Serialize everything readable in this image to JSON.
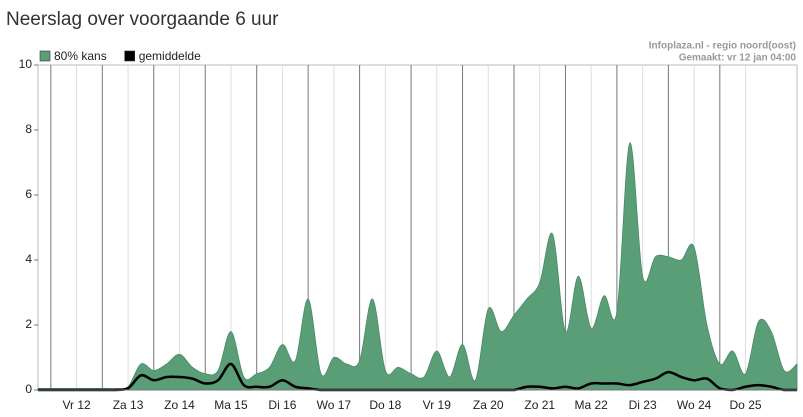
{
  "chart_data": {
    "type": "area",
    "title": "Neerslag over voorgaande 6 uur",
    "source": "Infoplaza.nl - regio noord(oost)",
    "made": "Gemaakt: vr 12 jan 04:00",
    "categories": [
      null,
      null,
      null,
      "Vr 12",
      null,
      null,
      null,
      "Za 13",
      null,
      null,
      null,
      "Zo 14",
      null,
      null,
      null,
      "Ma 15",
      null,
      null,
      null,
      "Di 16",
      null,
      null,
      null,
      "Wo 17",
      null,
      null,
      null,
      "Do 18",
      null,
      null,
      null,
      "Vr 19",
      null,
      null,
      null,
      "Za 20",
      null,
      null,
      null,
      "Zo 21",
      null,
      null,
      null,
      "Ma 22",
      null,
      null,
      null,
      "Di 23",
      null,
      null,
      null,
      "Wo 24",
      null,
      null,
      null,
      "Do 25",
      null,
      null,
      null,
      null
    ],
    "series": [
      {
        "name": "80% kans",
        "color": "#5a9e78",
        "values": [
          0.05,
          0.05,
          0.05,
          0.05,
          0.05,
          0.05,
          0.05,
          0.1,
          0.8,
          0.6,
          0.8,
          1.1,
          0.7,
          0.5,
          0.6,
          1.8,
          0.4,
          0.5,
          0.7,
          1.4,
          0.9,
          2.8,
          0.5,
          1.0,
          0.8,
          0.9,
          2.8,
          0.6,
          0.7,
          0.5,
          0.4,
          1.2,
          0.4,
          1.4,
          0.3,
          2.5,
          1.8,
          2.3,
          2.8,
          3.3,
          4.8,
          1.8,
          3.5,
          1.9,
          2.9,
          2.4,
          7.6,
          3.5,
          4.1,
          4.1,
          4.0,
          4.4,
          2.0,
          0.8,
          1.2,
          0.5,
          2.1,
          1.8,
          0.6,
          0.8
        ]
      },
      {
        "name": "gemiddelde",
        "color": "#000000",
        "values": [
          0,
          0,
          0,
          0,
          0,
          0,
          0,
          0.05,
          0.45,
          0.3,
          0.4,
          0.4,
          0.35,
          0.2,
          0.3,
          0.8,
          0.15,
          0.1,
          0.1,
          0.3,
          0.1,
          0.05,
          0,
          0,
          0,
          0,
          0,
          0,
          0,
          0,
          0,
          0,
          0,
          0,
          0,
          0,
          0,
          0,
          0.1,
          0.1,
          0.05,
          0.1,
          0.05,
          0.2,
          0.2,
          0.2,
          0.15,
          0.25,
          0.35,
          0.55,
          0.4,
          0.3,
          0.35,
          0.05,
          0,
          0.1,
          0.15,
          0.1,
          0,
          0
        ]
      }
    ],
    "ylim": [
      0,
      10
    ],
    "yticks": [
      0,
      2,
      4,
      6,
      8,
      10
    ]
  }
}
